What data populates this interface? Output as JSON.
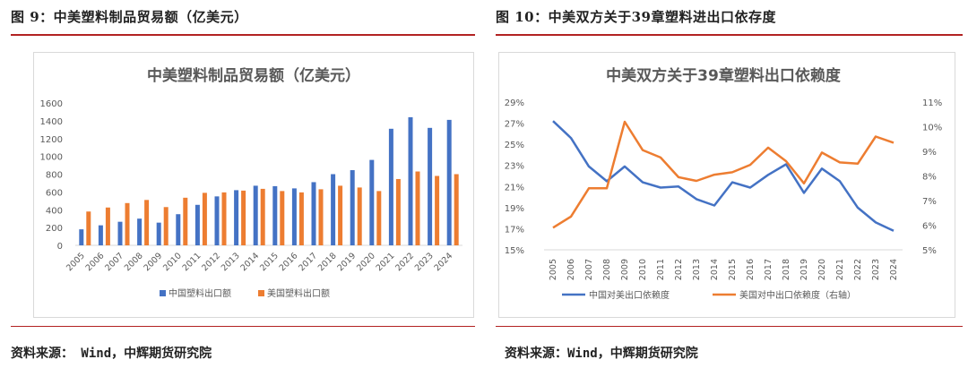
{
  "left": {
    "caption": "图 9：中美塑料制品贸易额（亿美元）",
    "source": "资料来源： Wind，中辉期货研究院",
    "chart_data": {
      "type": "bar",
      "title": "中美塑料制品贸易额（亿美元）",
      "categories": [
        "2005",
        "2006",
        "2007",
        "2008",
        "2009",
        "2010",
        "2011",
        "2012",
        "2013",
        "2014",
        "2015",
        "2016",
        "2017",
        "2018",
        "2019",
        "2020",
        "2021",
        "2022",
        "2023",
        "2024"
      ],
      "yticks": [
        "0",
        "200",
        "400",
        "600",
        "800",
        "1000",
        "1200",
        "1400",
        "1600"
      ],
      "ylim": [
        0,
        1600
      ],
      "series": [
        {
          "name": "中国塑料出口额",
          "color": "#4472C4",
          "values": [
            180,
            225,
            265,
            300,
            255,
            350,
            455,
            550,
            620,
            670,
            665,
            640,
            710,
            800,
            845,
            960,
            1310,
            1440,
            1320,
            1410
          ]
        },
        {
          "name": "美国塑料出口额",
          "color": "#ED7D31",
          "values": [
            380,
            425,
            475,
            510,
            430,
            535,
            590,
            595,
            615,
            635,
            610,
            595,
            630,
            670,
            650,
            610,
            745,
            830,
            780,
            800
          ]
        }
      ],
      "legend_position": "bottom"
    }
  },
  "right": {
    "caption": "图 10：中美双方关于39章塑料进出口依存度",
    "source": "资料来源：Wind，中辉期货研究院",
    "chart_data": {
      "type": "line",
      "title": "中美双方关于39章塑料出口依赖度",
      "categories": [
        "2005",
        "2006",
        "2007",
        "2008",
        "2009",
        "2010",
        "2011",
        "2012",
        "2013",
        "2014",
        "2015",
        "2016",
        "2017",
        "2018",
        "2019",
        "2020",
        "2021",
        "2022",
        "2023",
        "2024"
      ],
      "yticks_left": [
        "15%",
        "17%",
        "19%",
        "21%",
        "23%",
        "25%",
        "27%",
        "29%"
      ],
      "yticks_right": [
        "5%",
        "6%",
        "7%",
        "8%",
        "9%",
        "10%",
        "11%"
      ],
      "ylim_left": [
        15,
        29
      ],
      "ylim_right": [
        5,
        11
      ],
      "series": [
        {
          "name": "中国对美出口依赖度",
          "axis": "left",
          "color": "#4472C4",
          "values": [
            27.2,
            25.6,
            22.9,
            21.5,
            22.9,
            21.4,
            20.9,
            21.0,
            19.8,
            19.2,
            21.4,
            20.9,
            22.1,
            23.1,
            20.4,
            22.7,
            21.5,
            19.0,
            17.6,
            16.8
          ]
        },
        {
          "name": "美国对中出口依赖度（右轴）",
          "axis": "right",
          "color": "#ED7D31",
          "values": [
            5.9,
            6.35,
            7.5,
            7.5,
            10.2,
            9.05,
            8.75,
            7.95,
            7.8,
            8.05,
            8.15,
            8.45,
            9.15,
            8.6,
            7.7,
            8.95,
            8.55,
            8.5,
            9.6,
            9.35
          ]
        }
      ],
      "legend_position": "bottom"
    }
  }
}
